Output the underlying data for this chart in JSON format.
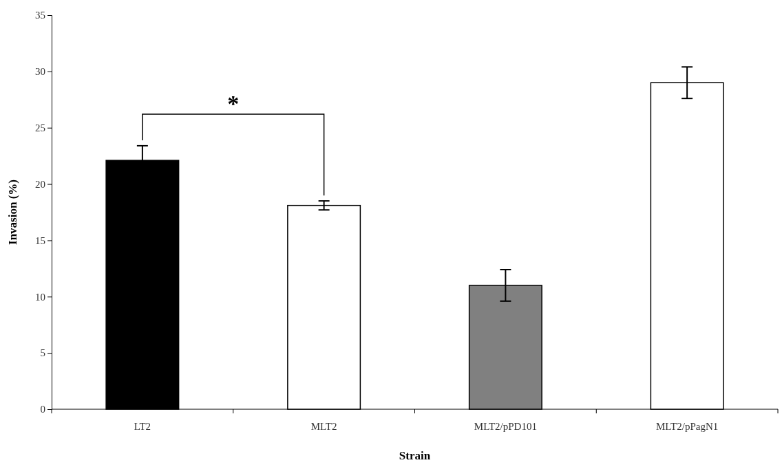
{
  "chart_data": {
    "type": "bar",
    "xlabel": "Strain",
    "ylabel": "Invasion (%)",
    "categories": [
      "LT2",
      "MLT2",
      "MLT2/pPD101",
      "MLT2/pPagN1"
    ],
    "values": [
      22.1,
      18.1,
      11.0,
      29.0
    ],
    "errors": [
      1.3,
      0.4,
      1.4,
      1.4
    ],
    "colors": [
      "#000000",
      "#ffffff",
      "#808080",
      "#ffffff"
    ],
    "ylim": [
      0,
      35
    ],
    "yticks": [
      0,
      5,
      10,
      15,
      20,
      25,
      30,
      35
    ],
    "annotations": [
      "*"
    ]
  }
}
